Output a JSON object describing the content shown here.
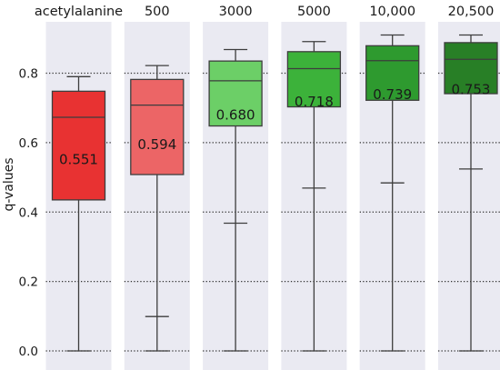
{
  "chart_data": {
    "type": "box",
    "ylabel": "q-values",
    "ylim": [
      -0.02,
      0.9
    ],
    "yticks": [
      "0.0",
      "0.2",
      "0.4",
      "0.6",
      "0.8"
    ],
    "ytick_values": [
      0.0,
      0.2,
      0.4,
      0.6,
      0.8
    ],
    "grid": "horizontal dotted at y ticks",
    "series": [
      {
        "label": "acetylalanine",
        "whisker_low": 0.0,
        "q1": 0.435,
        "median": 0.673,
        "q3": 0.748,
        "whisker_high": 0.79,
        "mean": 0.551,
        "mean_label": "0.551",
        "color": "#e83232"
      },
      {
        "label": "500",
        "whisker_low": 0.0,
        "q1": 0.508,
        "median": 0.708,
        "q3": 0.782,
        "whisker_high": 0.822,
        "extra_cap": 0.099,
        "mean": 0.594,
        "mean_label": "0.594",
        "color": "#ec6566"
      },
      {
        "label": "3000",
        "whisker_low": 0.0,
        "q1": 0.648,
        "median": 0.778,
        "q3": 0.835,
        "whisker_high": 0.868,
        "extra_cap": 0.368,
        "mean": 0.68,
        "mean_label": "0.680",
        "color": "#6ccf67"
      },
      {
        "label": "5000",
        "whisker_low": 0.0,
        "q1": 0.703,
        "median": 0.813,
        "q3": 0.862,
        "whisker_high": 0.891,
        "extra_cap": 0.469,
        "mean": 0.718,
        "mean_label": "0.718",
        "color": "#3cb23a"
      },
      {
        "label": "10,000",
        "whisker_low": 0.0,
        "q1": 0.722,
        "median": 0.836,
        "q3": 0.879,
        "whisker_high": 0.91,
        "extra_cap": 0.484,
        "mean": 0.739,
        "mean_label": "0.739",
        "color": "#2e9a2f"
      },
      {
        "label": "20,500",
        "whisker_low": 0.0,
        "q1": 0.741,
        "median": 0.84,
        "q3": 0.888,
        "whisker_high": 0.91,
        "extra_cap": 0.524,
        "mean": 0.753,
        "mean_label": "0.753",
        "color": "#287f26"
      }
    ]
  },
  "colors": {
    "panel_bg": "#eaeaf2",
    "grid": "#333333",
    "box_edge": "#3d3d3d"
  }
}
